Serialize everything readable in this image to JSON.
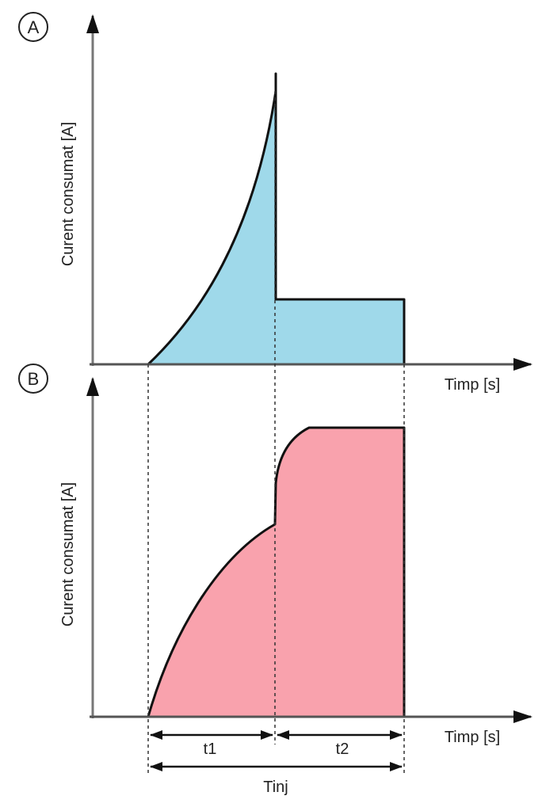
{
  "panel_a": {
    "label": "A",
    "ylabel": "Curent consumat [A]",
    "xlabel": "Timp [s]",
    "fill": "#9fd9ea"
  },
  "panel_b": {
    "label": "B",
    "ylabel": "Curent consumat [A]",
    "xlabel": "Timp [s]",
    "fill": "#f9a2ad"
  },
  "intervals": {
    "t1": "t1",
    "t2": "t2",
    "total": "Tinj"
  }
}
